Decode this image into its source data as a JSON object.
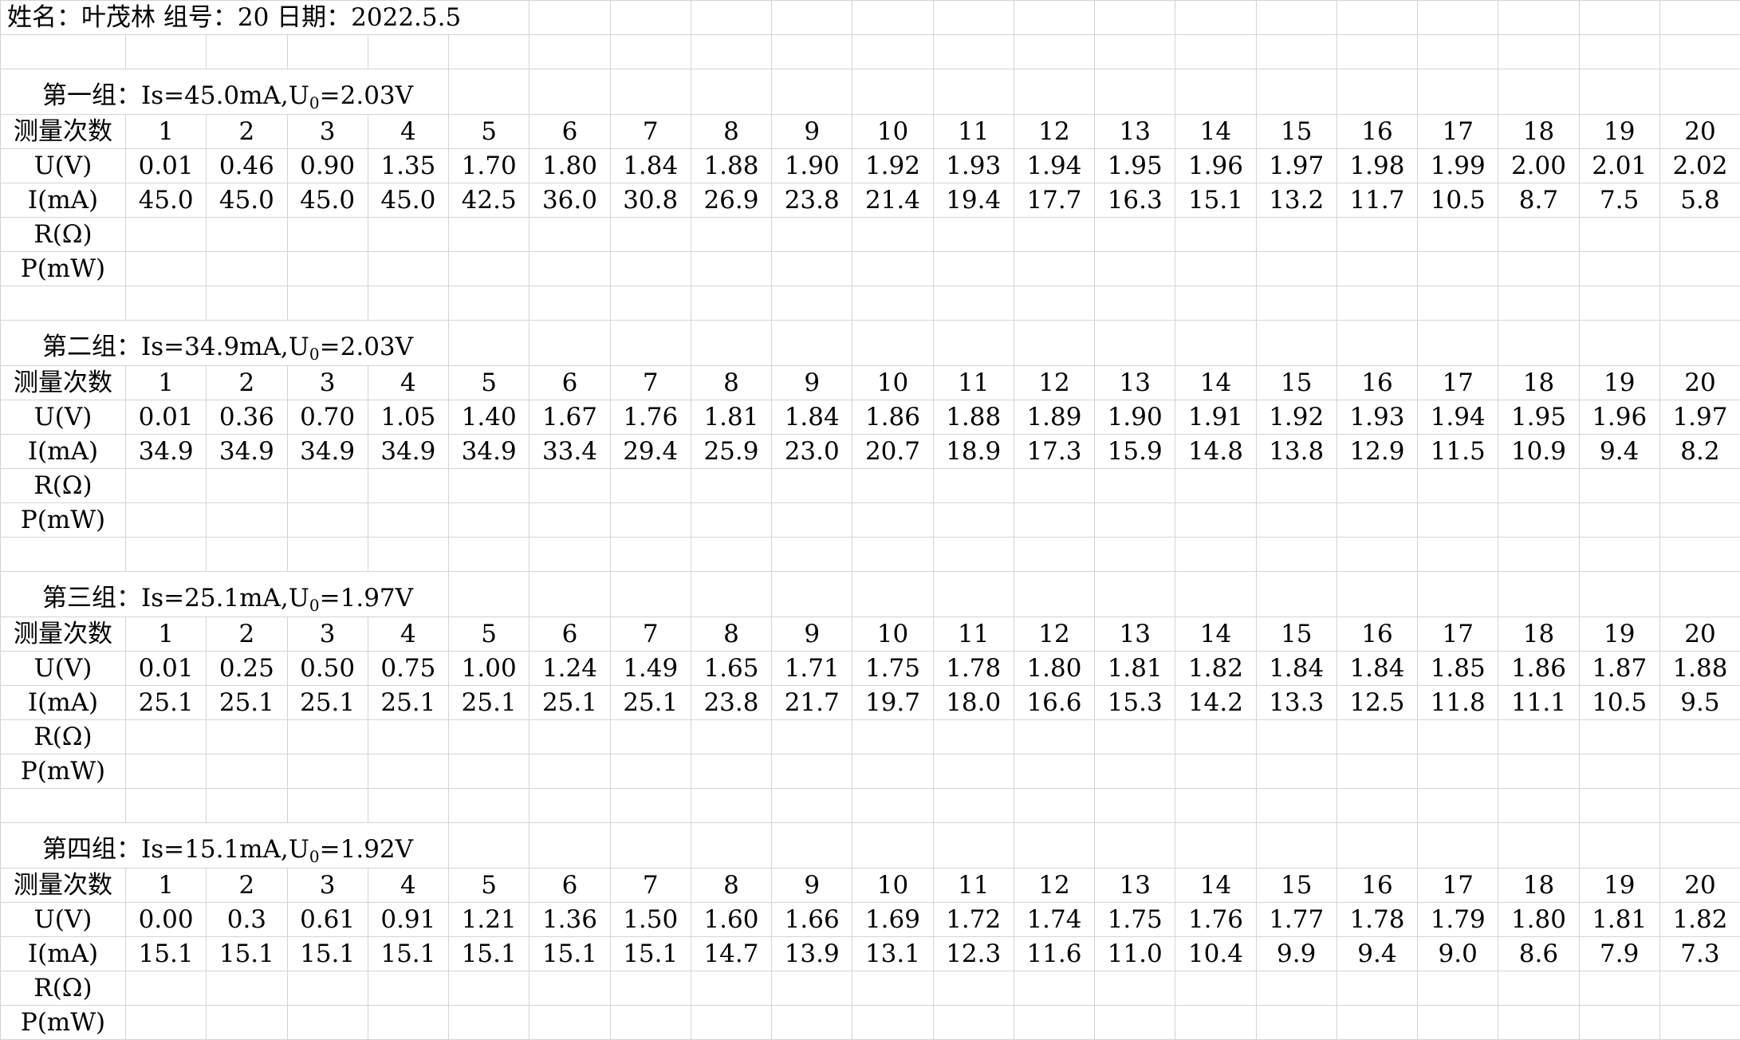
{
  "header": {
    "info": "姓名：叶茂林 组号：20 日期：2022.5.5"
  },
  "sheet": {
    "count_label": "测量次数",
    "row_labels": {
      "u": "U(V)",
      "i": "I(mA)",
      "r": "R(Ω)",
      "p": "P(mW)"
    }
  },
  "groups": [
    {
      "title_prefix": "第一组：Is=45.0mA,U",
      "title_sub": "0",
      "title_suffix": "=2.03V",
      "counts": [
        "1",
        "2",
        "3",
        "4",
        "5",
        "6",
        "7",
        "8",
        "9",
        "10",
        "11",
        "12",
        "13",
        "14",
        "15",
        "16",
        "17",
        "18",
        "19",
        "20"
      ],
      "u": [
        "0.01",
        "0.46",
        "0.90",
        "1.35",
        "1.70",
        "1.80",
        "1.84",
        "1.88",
        "1.90",
        "1.92",
        "1.93",
        "1.94",
        "1.95",
        "1.96",
        "1.97",
        "1.98",
        "1.99",
        "2.00",
        "2.01",
        "2.02"
      ],
      "i": [
        "45.0",
        "45.0",
        "45.0",
        "45.0",
        "42.5",
        "36.0",
        "30.8",
        "26.9",
        "23.8",
        "21.4",
        "19.4",
        "17.7",
        "16.3",
        "15.1",
        "13.2",
        "11.7",
        "10.5",
        "8.7",
        "7.5",
        "5.8"
      ]
    },
    {
      "title_prefix": "第二组：Is=34.9mA,U",
      "title_sub": "0",
      "title_suffix": "=2.03V",
      "counts": [
        "1",
        "2",
        "3",
        "4",
        "5",
        "6",
        "7",
        "8",
        "9",
        "10",
        "11",
        "12",
        "13",
        "14",
        "15",
        "16",
        "17",
        "18",
        "19",
        "20"
      ],
      "u": [
        "0.01",
        "0.36",
        "0.70",
        "1.05",
        "1.40",
        "1.67",
        "1.76",
        "1.81",
        "1.84",
        "1.86",
        "1.88",
        "1.89",
        "1.90",
        "1.91",
        "1.92",
        "1.93",
        "1.94",
        "1.95",
        "1.96",
        "1.97"
      ],
      "i": [
        "34.9",
        "34.9",
        "34.9",
        "34.9",
        "34.9",
        "33.4",
        "29.4",
        "25.9",
        "23.0",
        "20.7",
        "18.9",
        "17.3",
        "15.9",
        "14.8",
        "13.8",
        "12.9",
        "11.5",
        "10.9",
        "9.4",
        "8.2"
      ]
    },
    {
      "title_prefix": "第三组：Is=25.1mA,U",
      "title_sub": "0",
      "title_suffix": "=1.97V",
      "counts": [
        "1",
        "2",
        "3",
        "4",
        "5",
        "6",
        "7",
        "8",
        "9",
        "10",
        "11",
        "12",
        "13",
        "14",
        "15",
        "16",
        "17",
        "18",
        "19",
        "20"
      ],
      "u": [
        "0.01",
        "0.25",
        "0.50",
        "0.75",
        "1.00",
        "1.24",
        "1.49",
        "1.65",
        "1.71",
        "1.75",
        "1.78",
        "1.80",
        "1.81",
        "1.82",
        "1.84",
        "1.84",
        "1.85",
        "1.86",
        "1.87",
        "1.88"
      ],
      "i": [
        "25.1",
        "25.1",
        "25.1",
        "25.1",
        "25.1",
        "25.1",
        "25.1",
        "23.8",
        "21.7",
        "19.7",
        "18.0",
        "16.6",
        "15.3",
        "14.2",
        "13.3",
        "12.5",
        "11.8",
        "11.1",
        "10.5",
        "9.5"
      ]
    },
    {
      "title_prefix": "第四组：Is=15.1mA,U",
      "title_sub": "0",
      "title_suffix": "=1.92V",
      "counts": [
        "1",
        "2",
        "3",
        "4",
        "5",
        "6",
        "7",
        "8",
        "9",
        "10",
        "11",
        "12",
        "13",
        "14",
        "15",
        "16",
        "17",
        "18",
        "19",
        "20"
      ],
      "u": [
        "0.00",
        "0.3",
        "0.61",
        "0.91",
        "1.21",
        "1.36",
        "1.50",
        "1.60",
        "1.66",
        "1.69",
        "1.72",
        "1.74",
        "1.75",
        "1.76",
        "1.77",
        "1.78",
        "1.79",
        "1.80",
        "1.81",
        "1.82"
      ],
      "i": [
        "15.1",
        "15.1",
        "15.1",
        "15.1",
        "15.1",
        "15.1",
        "15.1",
        "14.7",
        "13.9",
        "13.1",
        "12.3",
        "11.6",
        "11.0",
        "10.4",
        "9.9",
        "9.4",
        "9.0",
        "8.6",
        "7.9",
        "7.3"
      ]
    }
  ]
}
